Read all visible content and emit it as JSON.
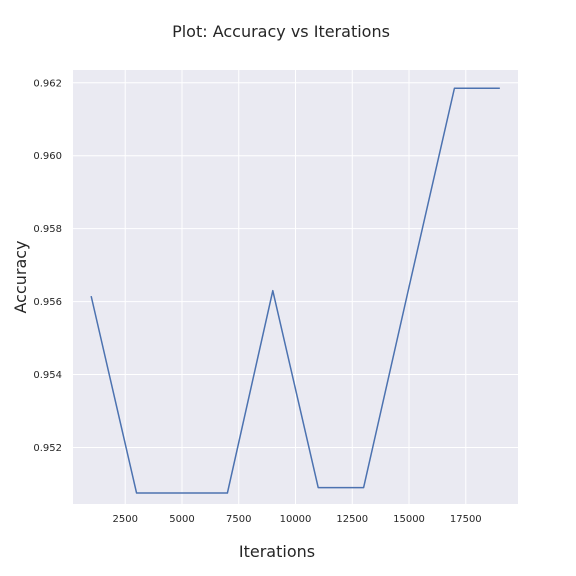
{
  "chart_data": {
    "type": "line",
    "title": "Plot: Accuracy vs Iterations",
    "xlabel": "Iterations",
    "ylabel": "Accuracy",
    "xlim": [
      200,
      19800
    ],
    "ylim": [
      0.95045,
      0.96235
    ],
    "grid": true,
    "background": "#eaeaf2",
    "grid_color": "#ffffff",
    "line_color": "#4c72b0",
    "x_ticks": [
      {
        "value": 2500,
        "label": "2500"
      },
      {
        "value": 5000,
        "label": "5000"
      },
      {
        "value": 7500,
        "label": "7500"
      },
      {
        "value": 10000,
        "label": "10000"
      },
      {
        "value": 12500,
        "label": "12500"
      },
      {
        "value": 15000,
        "label": "15000"
      },
      {
        "value": 17500,
        "label": "17500"
      }
    ],
    "y_ticks": [
      {
        "value": 0.952,
        "label": "0.952"
      },
      {
        "value": 0.954,
        "label": "0.954"
      },
      {
        "value": 0.956,
        "label": "0.956"
      },
      {
        "value": 0.958,
        "label": "0.958"
      },
      {
        "value": 0.96,
        "label": "0.960"
      },
      {
        "value": 0.962,
        "label": "0.962"
      }
    ],
    "series": [
      {
        "x": [
          1000,
          3000,
          5000,
          7000,
          9000,
          11000,
          13000,
          15000,
          17000,
          19000
        ],
        "y": [
          0.95615,
          0.95075,
          0.95075,
          0.95075,
          0.9563,
          0.9509,
          0.9509,
          0.9564,
          0.96185,
          0.96185
        ]
      }
    ]
  }
}
